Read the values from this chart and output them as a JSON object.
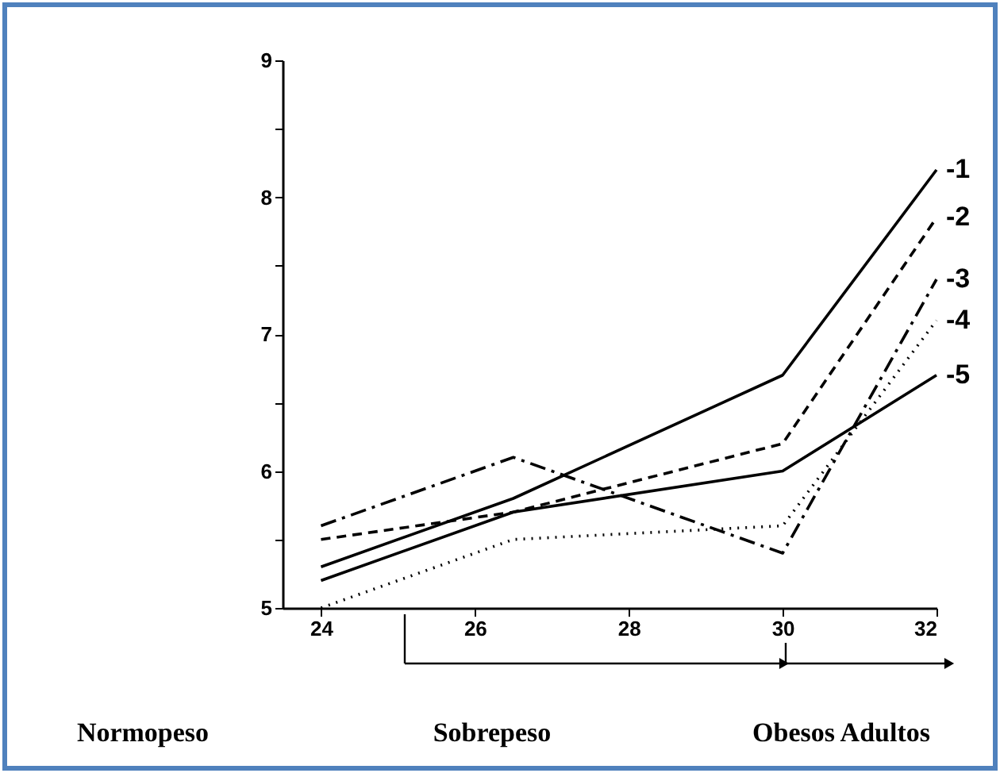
{
  "chart_data": {
    "type": "line",
    "x": [
      24,
      26.5,
      30,
      32
    ],
    "series": [
      {
        "name": "-1",
        "color": "#000000",
        "line_style": "solid",
        "values": [
          5.3,
          5.8,
          6.7,
          8.2
        ]
      },
      {
        "name": "-2",
        "color": "#000000",
        "line_style": "dashed",
        "values": [
          5.5,
          5.7,
          6.2,
          7.85
        ]
      },
      {
        "name": "-3",
        "color": "#000000",
        "line_style": "dashdot",
        "values": [
          5.6,
          6.1,
          5.4,
          7.4
        ]
      },
      {
        "name": "-4",
        "color": "#000000",
        "line_style": "dotted",
        "values": [
          5.0,
          5.5,
          5.6,
          7.1
        ]
      },
      {
        "name": "-5",
        "color": "#000000",
        "line_style": "solid",
        "values": [
          5.2,
          5.7,
          6.0,
          6.7
        ]
      }
    ],
    "xlim": [
      23.5,
      32
    ],
    "xticks": [
      24,
      26,
      28,
      30,
      32
    ],
    "ylim": [
      5,
      9
    ],
    "yticks": [
      5,
      {
        "value": 5.5,
        "label": null
      },
      6,
      {
        "value": 6.5,
        "label": null
      },
      7,
      {
        "value": 7.5,
        "label": null
      },
      8,
      {
        "value": 8.5,
        "label": null
      },
      9
    ],
    "grid": false,
    "legend": false,
    "marker": "none",
    "annotations": [
      "Normopeso",
      "Sobrepeso",
      "Obesos Adultos"
    ]
  }
}
